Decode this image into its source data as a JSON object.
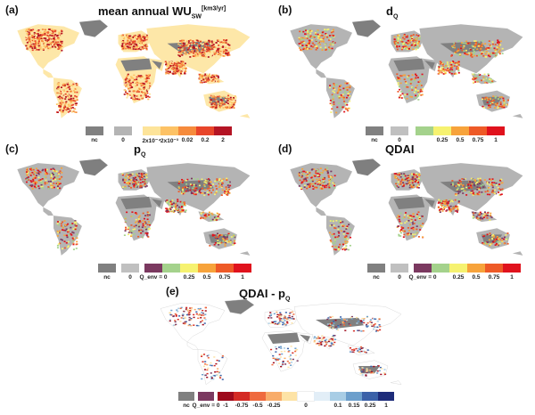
{
  "colors": {
    "nc": "#808080",
    "zero": "#c0c0c0",
    "purple": "#7b3960",
    "land_grey": "#b4b4b4",
    "greenland": "#7f7f7f"
  },
  "panels": [
    {
      "letter": "(a)",
      "title_main": "mean annual WU",
      "title_sub": "SW",
      "title_sup": "[km3/yr]",
      "legend": [
        {
          "label": "nc",
          "color": "#808080"
        },
        {
          "label": "0",
          "color": "#b4b4b4"
        },
        {
          "label": "2x10⁻⁴",
          "color": "#fde49a"
        },
        {
          "label": "2x10⁻³",
          "color": "#fdc265"
        },
        {
          "label": "0.02",
          "color": "#f68b3c"
        },
        {
          "label": "0.2",
          "color": "#e8452a"
        },
        {
          "label": "2",
          "color": "#b41424"
        }
      ]
    },
    {
      "letter": "(b)",
      "title_main": "d",
      "title_sub": "Q",
      "legend": [
        {
          "label": "nc",
          "color": "#808080"
        },
        {
          "label": "0",
          "color": "#c0c0c0"
        },
        {
          "label": "",
          "color": "#a4d28c"
        },
        {
          "label": "0.25",
          "color": "#f6f270"
        },
        {
          "label": "0.5",
          "color": "#f7a33b"
        },
        {
          "label": "0.75",
          "color": "#ee5a27"
        },
        {
          "label": "1",
          "color": "#e0121d"
        }
      ]
    },
    {
      "letter": "(c)",
      "title_main": "p",
      "title_sub": "Q",
      "legend": [
        {
          "label": "nc",
          "color": "#808080"
        },
        {
          "label": "0",
          "color": "#c0c0c0"
        },
        {
          "label": "Q_env = 0",
          "color": "#7b3960"
        },
        {
          "label": "",
          "color": "#a4d28c"
        },
        {
          "label": "0.25",
          "color": "#f6f270"
        },
        {
          "label": "0.5",
          "color": "#f7a33b"
        },
        {
          "label": "0.75",
          "color": "#ee5a27"
        },
        {
          "label": "1",
          "color": "#e0121d"
        }
      ]
    },
    {
      "letter": "(d)",
      "title_main": "QDAI",
      "title_sub": "",
      "legend": [
        {
          "label": "nc",
          "color": "#808080"
        },
        {
          "label": "0",
          "color": "#c0c0c0"
        },
        {
          "label": "Q_env = 0",
          "color": "#7b3960"
        },
        {
          "label": "",
          "color": "#a4d28c"
        },
        {
          "label": "0.25",
          "color": "#f6f270"
        },
        {
          "label": "0.5",
          "color": "#f7a33b"
        },
        {
          "label": "0.75",
          "color": "#ee5a27"
        },
        {
          "label": "1",
          "color": "#e0121d"
        }
      ]
    },
    {
      "letter": "(e)",
      "title_main": "QDAI - p",
      "title_sub": "Q",
      "legend": [
        {
          "label": "nc",
          "color": "#808080"
        },
        {
          "label": "Q_env = 0",
          "color": "#7b3960"
        },
        {
          "label": "-1",
          "color": "#9e0a1c"
        },
        {
          "label": "-0.75",
          "color": "#d42a24"
        },
        {
          "label": "-0.5",
          "color": "#ef6a3e"
        },
        {
          "label": "-0.25",
          "color": "#f8ac6a"
        },
        {
          "label": "",
          "color": "#fde3a6"
        },
        {
          "label": "0",
          "color": "#ffffff"
        },
        {
          "label": "",
          "color": "#e2eef7"
        },
        {
          "label": "0.1",
          "color": "#a8cde5"
        },
        {
          "label": "0.15",
          "color": "#6c9fcc"
        },
        {
          "label": "0.25",
          "color": "#3b61a8"
        },
        {
          "label": "1",
          "color": "#1e2c7a"
        }
      ]
    }
  ]
}
